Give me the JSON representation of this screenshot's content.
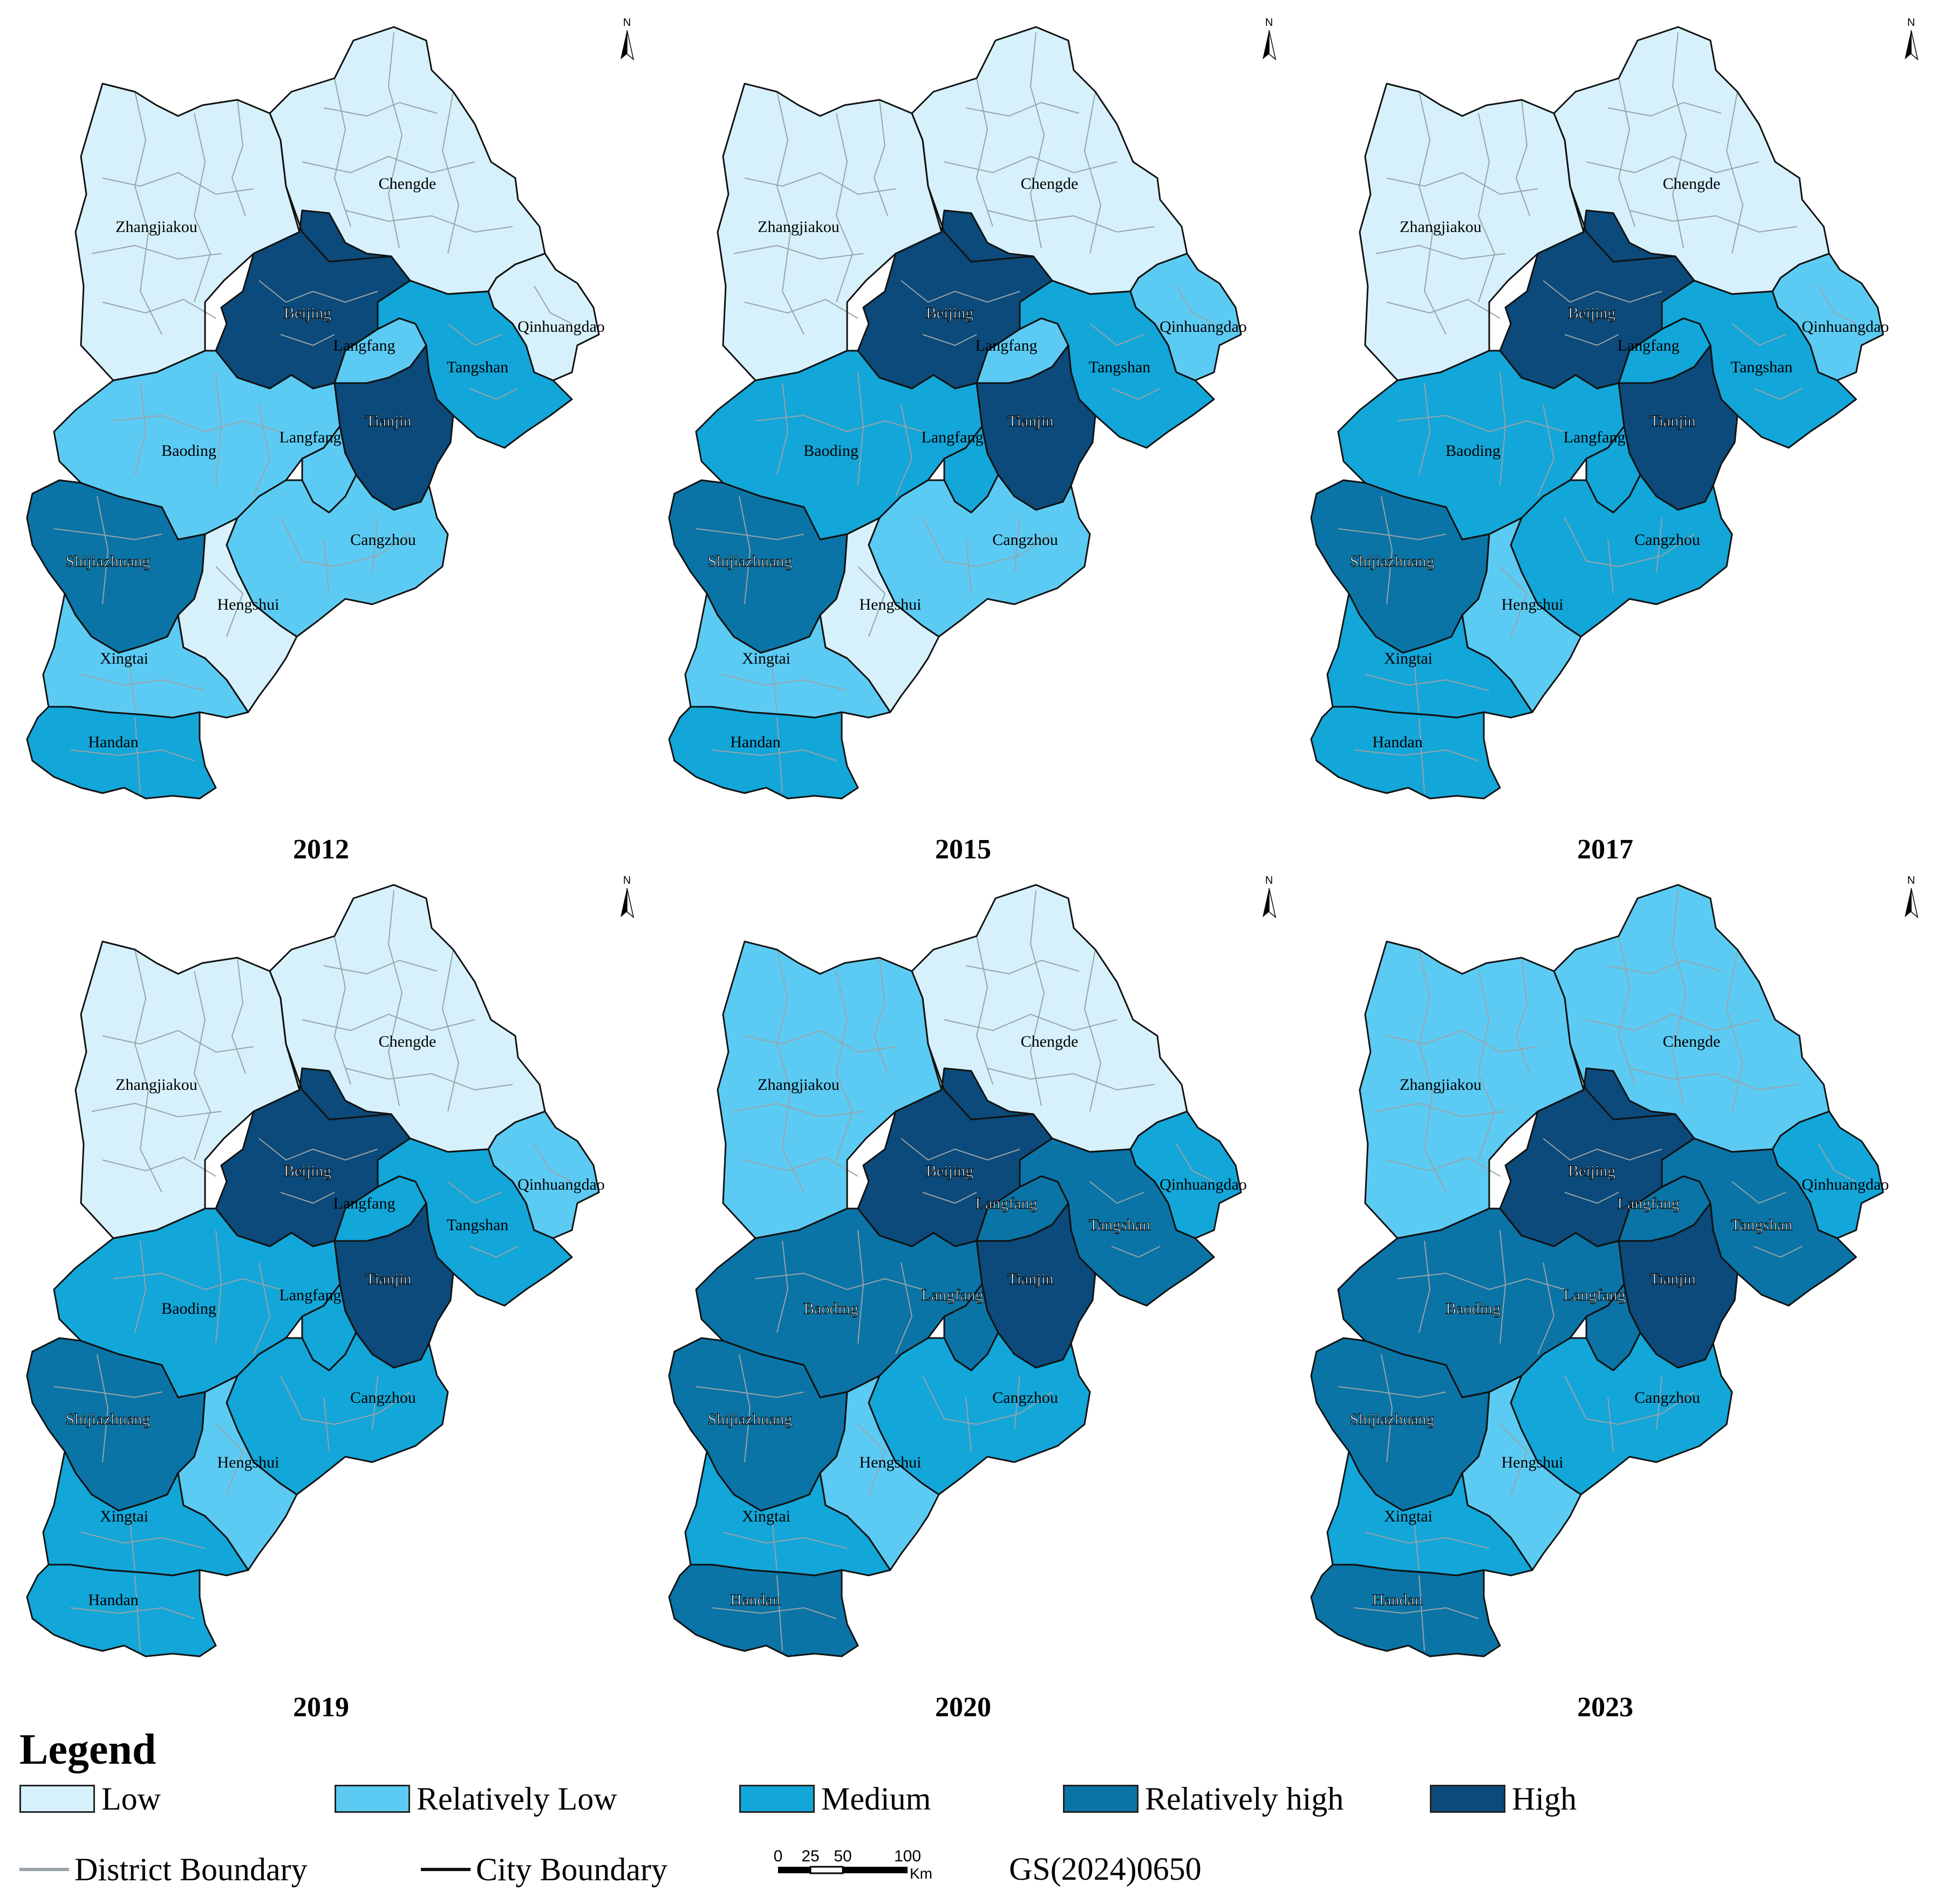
{
  "colors": {
    "low": "#d6f1fb",
    "relatively_low": "#5ccbf3",
    "medium": "#13a6d8",
    "relatively_high": "#0a74a6",
    "high": "#0b4a7a",
    "district_line": "#9aa3a8",
    "city_line": "#111111"
  },
  "city_labels": {
    "zhangjiakou": "Zhangjiakou",
    "chengde": "Chengde",
    "beijing": "Beijing",
    "langfang_n": "Langfang",
    "qinhuangdao": "Qinhuangdao",
    "tangshan": "Tangshan",
    "tianjin": "Tianjin",
    "baoding": "Baoding",
    "langfang_s": "Langfang",
    "cangzhou": "Cangzhou",
    "shijiazhuang": "Shijiazhuang",
    "hengshui": "Hengshui",
    "xingtai": "Xingtai",
    "handan": "Handan"
  },
  "north_arrow_label": "N",
  "maps": [
    {
      "year": "2012",
      "levels": {
        "zhangjiakou": "low",
        "chengde": "low",
        "beijing": "high",
        "langfang_n": "relatively_low",
        "qinhuangdao": "low",
        "tangshan": "medium",
        "tianjin": "high",
        "baoding": "relatively_low",
        "langfang_s": "relatively_low",
        "cangzhou": "relatively_low",
        "shijiazhuang": "relatively_high",
        "hengshui": "low",
        "xingtai": "relatively_low",
        "handan": "medium"
      }
    },
    {
      "year": "2015",
      "levels": {
        "zhangjiakou": "low",
        "chengde": "low",
        "beijing": "high",
        "langfang_n": "relatively_low",
        "qinhuangdao": "relatively_low",
        "tangshan": "medium",
        "tianjin": "high",
        "baoding": "medium",
        "langfang_s": "medium",
        "cangzhou": "relatively_low",
        "shijiazhuang": "relatively_high",
        "hengshui": "low",
        "xingtai": "relatively_low",
        "handan": "medium"
      }
    },
    {
      "year": "2017",
      "levels": {
        "zhangjiakou": "low",
        "chengde": "low",
        "beijing": "high",
        "langfang_n": "medium",
        "qinhuangdao": "relatively_low",
        "tangshan": "medium",
        "tianjin": "high",
        "baoding": "medium",
        "langfang_s": "medium",
        "cangzhou": "medium",
        "shijiazhuang": "relatively_high",
        "hengshui": "relatively_low",
        "xingtai": "medium",
        "handan": "medium"
      }
    },
    {
      "year": "2019",
      "levels": {
        "zhangjiakou": "low",
        "chengde": "low",
        "beijing": "high",
        "langfang_n": "medium",
        "qinhuangdao": "relatively_low",
        "tangshan": "medium",
        "tianjin": "high",
        "baoding": "medium",
        "langfang_s": "medium",
        "cangzhou": "medium",
        "shijiazhuang": "relatively_high",
        "hengshui": "relatively_low",
        "xingtai": "medium",
        "handan": "medium"
      }
    },
    {
      "year": "2020",
      "levels": {
        "zhangjiakou": "relatively_low",
        "chengde": "low",
        "beijing": "high",
        "langfang_n": "relatively_high",
        "qinhuangdao": "medium",
        "tangshan": "relatively_high",
        "tianjin": "high",
        "baoding": "relatively_high",
        "langfang_s": "relatively_high",
        "cangzhou": "medium",
        "shijiazhuang": "relatively_high",
        "hengshui": "relatively_low",
        "xingtai": "medium",
        "handan": "relatively_high"
      }
    },
    {
      "year": "2023",
      "levels": {
        "zhangjiakou": "relatively_low",
        "chengde": "relatively_low",
        "beijing": "high",
        "langfang_n": "relatively_high",
        "qinhuangdao": "medium",
        "tangshan": "relatively_high",
        "tianjin": "high",
        "baoding": "relatively_high",
        "langfang_s": "relatively_high",
        "cangzhou": "medium",
        "shijiazhuang": "relatively_high",
        "hengshui": "relatively_low",
        "xingtai": "medium",
        "handan": "relatively_high"
      }
    }
  ],
  "legend": {
    "title": "Legend",
    "classes": [
      {
        "key": "low",
        "label": "Low"
      },
      {
        "key": "relatively_low",
        "label": "Relatively Low"
      },
      {
        "key": "medium",
        "label": "Medium"
      },
      {
        "key": "relatively_high",
        "label": "Relatively high"
      },
      {
        "key": "high",
        "label": "High"
      }
    ],
    "district_boundary": "District Boundary",
    "city_boundary": "City Boundary",
    "scale_ticks": [
      "0",
      "25",
      "50",
      "100"
    ],
    "scale_unit": "Km",
    "map_approval": "GS(2024)0650"
  }
}
